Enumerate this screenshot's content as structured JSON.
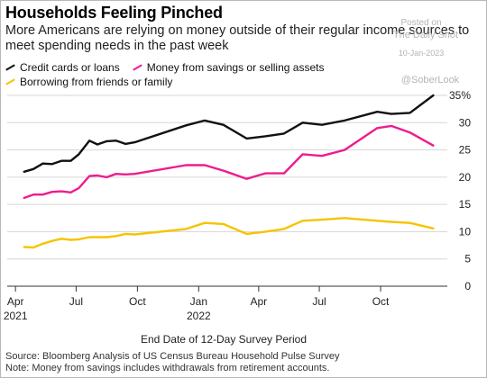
{
  "chart_data": {
    "type": "line",
    "title": "Households Feeling Pinched",
    "subtitle": "More Americans are relying on money outside of their regular income sources to meet spending needs in the past week",
    "xlabel": "End Date of 12-Day Survey Period",
    "ylabel": "",
    "ylim": [
      0,
      35
    ],
    "y_ticks": [
      0,
      5,
      10,
      15,
      20,
      25,
      30,
      35
    ],
    "y_tick_labels": [
      "0",
      "5",
      "10",
      "15",
      "20",
      "25",
      "30",
      "35%"
    ],
    "y_axis_position": "right",
    "x_ticks": [
      {
        "date": "2021-04-01",
        "label": "Apr",
        "sub": "2021"
      },
      {
        "date": "2021-07-01",
        "label": "Jul",
        "sub": ""
      },
      {
        "date": "2021-10-01",
        "label": "Oct",
        "sub": ""
      },
      {
        "date": "2022-01-01",
        "label": "Jan",
        "sub": "2022"
      },
      {
        "date": "2022-04-01",
        "label": "Apr",
        "sub": ""
      },
      {
        "date": "2022-07-01",
        "label": "Jul",
        "sub": ""
      },
      {
        "date": "2022-10-01",
        "label": "Oct",
        "sub": ""
      }
    ],
    "grid": true,
    "legend_placement": "top-left",
    "series": [
      {
        "name": "Credit cards or loans",
        "color": "#111111",
        "points": [
          [
            "2021-04-14",
            21.0
          ],
          [
            "2021-04-28",
            21.5
          ],
          [
            "2021-05-12",
            22.5
          ],
          [
            "2021-05-26",
            22.4
          ],
          [
            "2021-06-09",
            23.0
          ],
          [
            "2021-06-23",
            23.0
          ],
          [
            "2021-07-05",
            24.2
          ],
          [
            "2021-07-21",
            26.7
          ],
          [
            "2021-08-02",
            26.0
          ],
          [
            "2021-08-16",
            26.6
          ],
          [
            "2021-08-30",
            26.7
          ],
          [
            "2021-09-13",
            26.1
          ],
          [
            "2021-09-27",
            26.4
          ],
          [
            "2021-12-13",
            29.5
          ],
          [
            "2022-01-10",
            30.4
          ],
          [
            "2022-02-07",
            29.6
          ],
          [
            "2022-03-14",
            27.1
          ],
          [
            "2022-04-11",
            27.5
          ],
          [
            "2022-05-09",
            28.0
          ],
          [
            "2022-06-06",
            30.0
          ],
          [
            "2022-07-05",
            29.6
          ],
          [
            "2022-08-08",
            30.4
          ],
          [
            "2022-09-26",
            32.0
          ],
          [
            "2022-10-17",
            31.6
          ],
          [
            "2022-11-14",
            31.8
          ],
          [
            "2022-12-19",
            35.0
          ]
        ]
      },
      {
        "name": "Money from savings or selling assets",
        "color": "#ee1c8e",
        "points": [
          [
            "2021-04-14",
            16.2
          ],
          [
            "2021-04-28",
            16.8
          ],
          [
            "2021-05-12",
            16.8
          ],
          [
            "2021-05-26",
            17.3
          ],
          [
            "2021-06-09",
            17.4
          ],
          [
            "2021-06-23",
            17.2
          ],
          [
            "2021-07-05",
            18.0
          ],
          [
            "2021-07-21",
            20.2
          ],
          [
            "2021-08-02",
            20.3
          ],
          [
            "2021-08-16",
            20.0
          ],
          [
            "2021-08-30",
            20.6
          ],
          [
            "2021-09-13",
            20.5
          ],
          [
            "2021-09-27",
            20.6
          ],
          [
            "2021-12-13",
            22.2
          ],
          [
            "2022-01-10",
            22.2
          ],
          [
            "2022-02-07",
            21.2
          ],
          [
            "2022-03-14",
            19.7
          ],
          [
            "2022-04-11",
            20.7
          ],
          [
            "2022-05-09",
            20.7
          ],
          [
            "2022-06-06",
            24.2
          ],
          [
            "2022-07-05",
            23.9
          ],
          [
            "2022-08-08",
            25.0
          ],
          [
            "2022-09-26",
            29.0
          ],
          [
            "2022-10-17",
            29.4
          ],
          [
            "2022-11-14",
            28.2
          ],
          [
            "2022-12-19",
            25.8
          ]
        ]
      },
      {
        "name": "Borrowing from friends or family",
        "color": "#f5c400",
        "points": [
          [
            "2021-04-14",
            7.2
          ],
          [
            "2021-04-28",
            7.1
          ],
          [
            "2021-05-12",
            7.8
          ],
          [
            "2021-05-26",
            8.3
          ],
          [
            "2021-06-09",
            8.7
          ],
          [
            "2021-06-23",
            8.5
          ],
          [
            "2021-07-05",
            8.6
          ],
          [
            "2021-07-21",
            9.0
          ],
          [
            "2021-08-02",
            9.0
          ],
          [
            "2021-08-16",
            9.0
          ],
          [
            "2021-08-30",
            9.2
          ],
          [
            "2021-09-13",
            9.6
          ],
          [
            "2021-09-27",
            9.5
          ],
          [
            "2021-12-13",
            10.5
          ],
          [
            "2022-01-10",
            11.6
          ],
          [
            "2022-02-07",
            11.4
          ],
          [
            "2022-03-14",
            9.6
          ],
          [
            "2022-04-11",
            10.0
          ],
          [
            "2022-05-09",
            10.5
          ],
          [
            "2022-06-06",
            12.0
          ],
          [
            "2022-07-05",
            12.2
          ],
          [
            "2022-08-08",
            12.5
          ],
          [
            "2022-09-26",
            12.0
          ],
          [
            "2022-10-17",
            11.8
          ],
          [
            "2022-11-14",
            11.6
          ],
          [
            "2022-12-19",
            10.6
          ]
        ]
      }
    ]
  },
  "watermark": {
    "line1": "Posted on",
    "line2": "The Daily Shot",
    "line3": "10-Jan-2023",
    "handle": "@SoberLook"
  },
  "footer": {
    "source": "Source: Bloomberg Analysis of US Census Bureau Household Pulse Survey",
    "note": "Note: Money from savings includes withdrawals from retirement accounts."
  }
}
